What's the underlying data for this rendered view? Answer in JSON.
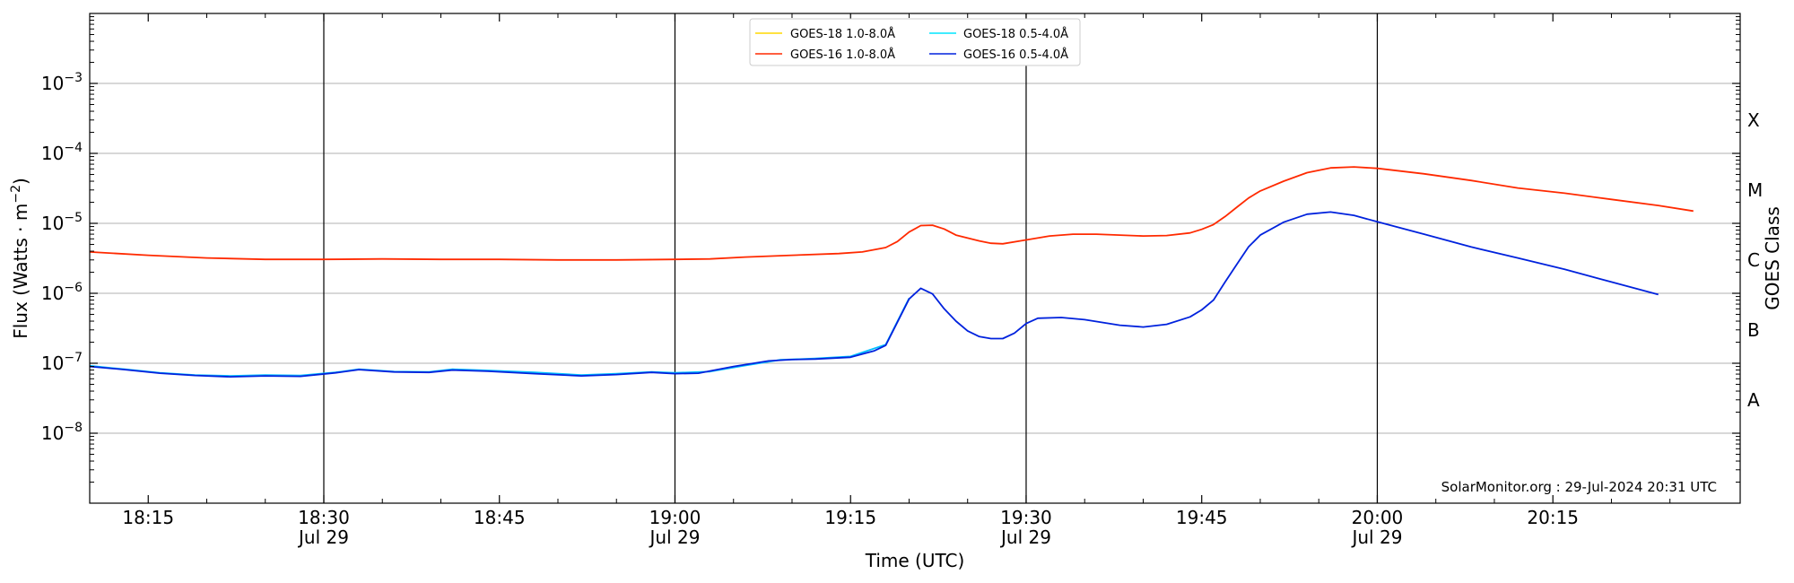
{
  "chart_data": {
    "type": "line",
    "xlabel": "Time (UTC)",
    "ylabel_main": "Flux (Watts · m",
    "ylabel_sup": "−2",
    "ylabel_close": ")",
    "right_label": "GOES Class",
    "credit": "SolarMonitor.org : 29-Jul-2024 20:31 UTC",
    "x_range": [
      "2024-07-29T18:10:00Z",
      "2024-07-29T20:31:00Z"
    ],
    "y_scale": "log",
    "ylim": [
      1e-09,
      0.01
    ],
    "grid": "horizontal at decades",
    "legend_position": "top-center",
    "x_ticks": [
      {
        "time": "18:15",
        "label": "18:15",
        "sub": ""
      },
      {
        "time": "18:30",
        "label": "18:30",
        "sub": "Jul 29"
      },
      {
        "time": "18:45",
        "label": "18:45",
        "sub": ""
      },
      {
        "time": "19:00",
        "label": "19:00",
        "sub": "Jul 29"
      },
      {
        "time": "19:15",
        "label": "19:15",
        "sub": ""
      },
      {
        "time": "19:30",
        "label": "19:30",
        "sub": "Jul 29"
      },
      {
        "time": "19:45",
        "label": "19:45",
        "sub": ""
      },
      {
        "time": "20:00",
        "label": "20:00",
        "sub": "Jul 29"
      },
      {
        "time": "20:15",
        "label": "20:15",
        "sub": ""
      }
    ],
    "y_ticks": [
      {
        "value": 1e-08,
        "base": "10",
        "exp": "−8"
      },
      {
        "value": 1e-07,
        "base": "10",
        "exp": "−7"
      },
      {
        "value": 1e-06,
        "base": "10",
        "exp": "−6"
      },
      {
        "value": 1e-05,
        "base": "10",
        "exp": "−5"
      },
      {
        "value": 0.0001,
        "base": "10",
        "exp": "−4"
      },
      {
        "value": 0.001,
        "base": "10",
        "exp": "−3"
      }
    ],
    "goes_classes": [
      {
        "label": "A",
        "value": 3e-08
      },
      {
        "label": "B",
        "value": 3e-07
      },
      {
        "label": "C",
        "value": 3e-06
      },
      {
        "label": "M",
        "value": 3e-05
      },
      {
        "label": "X",
        "value": 0.0003
      }
    ],
    "vlines": [
      "18:30",
      "19:00",
      "19:30",
      "20:00"
    ],
    "legend": [
      {
        "name": "GOES-18 1.0-8.0Å",
        "color": "#ffd700"
      },
      {
        "name": "GOES-18 0.5-4.0Å",
        "color": "#00e5ff"
      },
      {
        "name": "GOES-16 1.0-8.0Å",
        "color": "#ff2a00"
      },
      {
        "name": "GOES-16 0.5-4.0Å",
        "color": "#0022dd"
      }
    ],
    "series": [
      {
        "name": "GOES-18 0.5-4.0Å",
        "color": "#00bfff",
        "points": [
          [
            "18:10",
            9.2e-08
          ],
          [
            "18:13",
            8.2e-08
          ],
          [
            "18:16",
            7.3e-08
          ],
          [
            "18:19",
            6.8e-08
          ],
          [
            "18:22",
            6.6e-08
          ],
          [
            "18:25",
            6.8e-08
          ],
          [
            "18:28",
            6.7e-08
          ],
          [
            "18:31",
            7.4e-08
          ],
          [
            "18:33",
            8.2e-08
          ],
          [
            "18:36",
            7.6e-08
          ],
          [
            "18:39",
            7.5e-08
          ],
          [
            "18:41",
            8.2e-08
          ],
          [
            "18:44",
            7.9e-08
          ],
          [
            "18:48",
            7.4e-08
          ],
          [
            "18:52",
            6.8e-08
          ],
          [
            "18:55",
            7.1e-08
          ],
          [
            "18:58",
            7.5e-08
          ],
          [
            "19:00",
            7.3e-08
          ],
          [
            "19:03",
            7.6e-08
          ],
          [
            "19:06",
            9.3e-08
          ],
          [
            "19:09",
            1.12e-07
          ],
          [
            "19:12",
            1.17e-07
          ],
          [
            "19:15",
            1.25e-07
          ],
          [
            "19:18",
            1.85e-07
          ],
          [
            "19:20",
            8.5e-07
          ]
        ]
      },
      {
        "name": "GOES-16 1.0-8.0Å",
        "color": "#ff2a00",
        "points": [
          [
            "18:10",
            3.9e-06
          ],
          [
            "18:15",
            3.5e-06
          ],
          [
            "18:20",
            3.2e-06
          ],
          [
            "18:25",
            3.05e-06
          ],
          [
            "18:30",
            3.05e-06
          ],
          [
            "18:35",
            3.1e-06
          ],
          [
            "18:40",
            3.05e-06
          ],
          [
            "18:45",
            3.05e-06
          ],
          [
            "18:50",
            3e-06
          ],
          [
            "18:55",
            3e-06
          ],
          [
            "19:00",
            3.05e-06
          ],
          [
            "19:03",
            3.1e-06
          ],
          [
            "19:06",
            3.3e-06
          ],
          [
            "19:10",
            3.5e-06
          ],
          [
            "19:14",
            3.7e-06
          ],
          [
            "19:16",
            3.9e-06
          ],
          [
            "19:18",
            4.5e-06
          ],
          [
            "19:19",
            5.5e-06
          ],
          [
            "19:20",
            7.5e-06
          ],
          [
            "19:21",
            9.3e-06
          ],
          [
            "19:22",
            9.4e-06
          ],
          [
            "19:23",
            8.3e-06
          ],
          [
            "19:24",
            6.8e-06
          ],
          [
            "19:26",
            5.6e-06
          ],
          [
            "19:27",
            5.2e-06
          ],
          [
            "19:28",
            5.1e-06
          ],
          [
            "19:30",
            5.8e-06
          ],
          [
            "19:32",
            6.6e-06
          ],
          [
            "19:34",
            7e-06
          ],
          [
            "19:36",
            7e-06
          ],
          [
            "19:40",
            6.6e-06
          ],
          [
            "19:42",
            6.7e-06
          ],
          [
            "19:44",
            7.3e-06
          ],
          [
            "19:45",
            8.2e-06
          ],
          [
            "19:46",
            9.6e-06
          ],
          [
            "19:47",
            1.25e-05
          ],
          [
            "19:48",
            1.7e-05
          ],
          [
            "19:49",
            2.3e-05
          ],
          [
            "19:50",
            2.9e-05
          ],
          [
            "19:52",
            4e-05
          ],
          [
            "19:54",
            5.3e-05
          ],
          [
            "19:56",
            6.2e-05
          ],
          [
            "19:58",
            6.4e-05
          ],
          [
            "20:00",
            6.1e-05
          ],
          [
            "20:04",
            5.1e-05
          ],
          [
            "20:08",
            4.1e-05
          ],
          [
            "20:12",
            3.2e-05
          ],
          [
            "20:16",
            2.7e-05
          ],
          [
            "20:20",
            2.2e-05
          ],
          [
            "20:24",
            1.8e-05
          ],
          [
            "20:27",
            1.5e-05
          ]
        ]
      },
      {
        "name": "GOES-16 0.5-4.0Å",
        "color": "#0022dd",
        "points": [
          [
            "18:10",
            9e-08
          ],
          [
            "18:13",
            8.1e-08
          ],
          [
            "18:16",
            7.2e-08
          ],
          [
            "18:19",
            6.7e-08
          ],
          [
            "18:22",
            6.4e-08
          ],
          [
            "18:25",
            6.6e-08
          ],
          [
            "18:28",
            6.5e-08
          ],
          [
            "18:31",
            7.3e-08
          ],
          [
            "18:33",
            8.1e-08
          ],
          [
            "18:36",
            7.5e-08
          ],
          [
            "18:39",
            7.4e-08
          ],
          [
            "18:41",
            8e-08
          ],
          [
            "18:44",
            7.7e-08
          ],
          [
            "18:48",
            7.1e-08
          ],
          [
            "18:52",
            6.6e-08
          ],
          [
            "18:55",
            6.9e-08
          ],
          [
            "18:58",
            7.4e-08
          ],
          [
            "19:00",
            7.1e-08
          ],
          [
            "19:02",
            7.2e-08
          ],
          [
            "19:05",
            9e-08
          ],
          [
            "19:08",
            1.08e-07
          ],
          [
            "19:10",
            1.13e-07
          ],
          [
            "19:12",
            1.15e-07
          ],
          [
            "19:15",
            1.22e-07
          ],
          [
            "19:17",
            1.5e-07
          ],
          [
            "19:18",
            1.8e-07
          ],
          [
            "19:20",
            8.3e-07
          ],
          [
            "19:21",
            1.18e-06
          ],
          [
            "19:22",
            9.8e-07
          ],
          [
            "19:23",
            6e-07
          ],
          [
            "19:24",
            4e-07
          ],
          [
            "19:25",
            2.9e-07
          ],
          [
            "19:26",
            2.4e-07
          ],
          [
            "19:27",
            2.25e-07
          ],
          [
            "19:28",
            2.25e-07
          ],
          [
            "19:29",
            2.7e-07
          ],
          [
            "19:30",
            3.7e-07
          ],
          [
            "19:31",
            4.4e-07
          ],
          [
            "19:33",
            4.5e-07
          ],
          [
            "19:35",
            4.2e-07
          ],
          [
            "19:38",
            3.5e-07
          ],
          [
            "19:40",
            3.3e-07
          ],
          [
            "19:42",
            3.6e-07
          ],
          [
            "19:44",
            4.6e-07
          ],
          [
            "19:45",
            5.8e-07
          ],
          [
            "19:46",
            8e-07
          ],
          [
            "19:47",
            1.45e-06
          ],
          [
            "19:48",
            2.6e-06
          ],
          [
            "19:49",
            4.6e-06
          ],
          [
            "19:50",
            6.8e-06
          ],
          [
            "19:52",
            1.04e-05
          ],
          [
            "19:54",
            1.35e-05
          ],
          [
            "19:56",
            1.45e-05
          ],
          [
            "19:58",
            1.3e-05
          ],
          [
            "20:00",
            1.05e-05
          ],
          [
            "20:04",
            7e-06
          ],
          [
            "20:08",
            4.6e-06
          ],
          [
            "20:12",
            3.2e-06
          ],
          [
            "20:16",
            2.2e-06
          ],
          [
            "20:20",
            1.45e-06
          ],
          [
            "20:24",
            9.6e-07
          ]
        ]
      }
    ]
  }
}
